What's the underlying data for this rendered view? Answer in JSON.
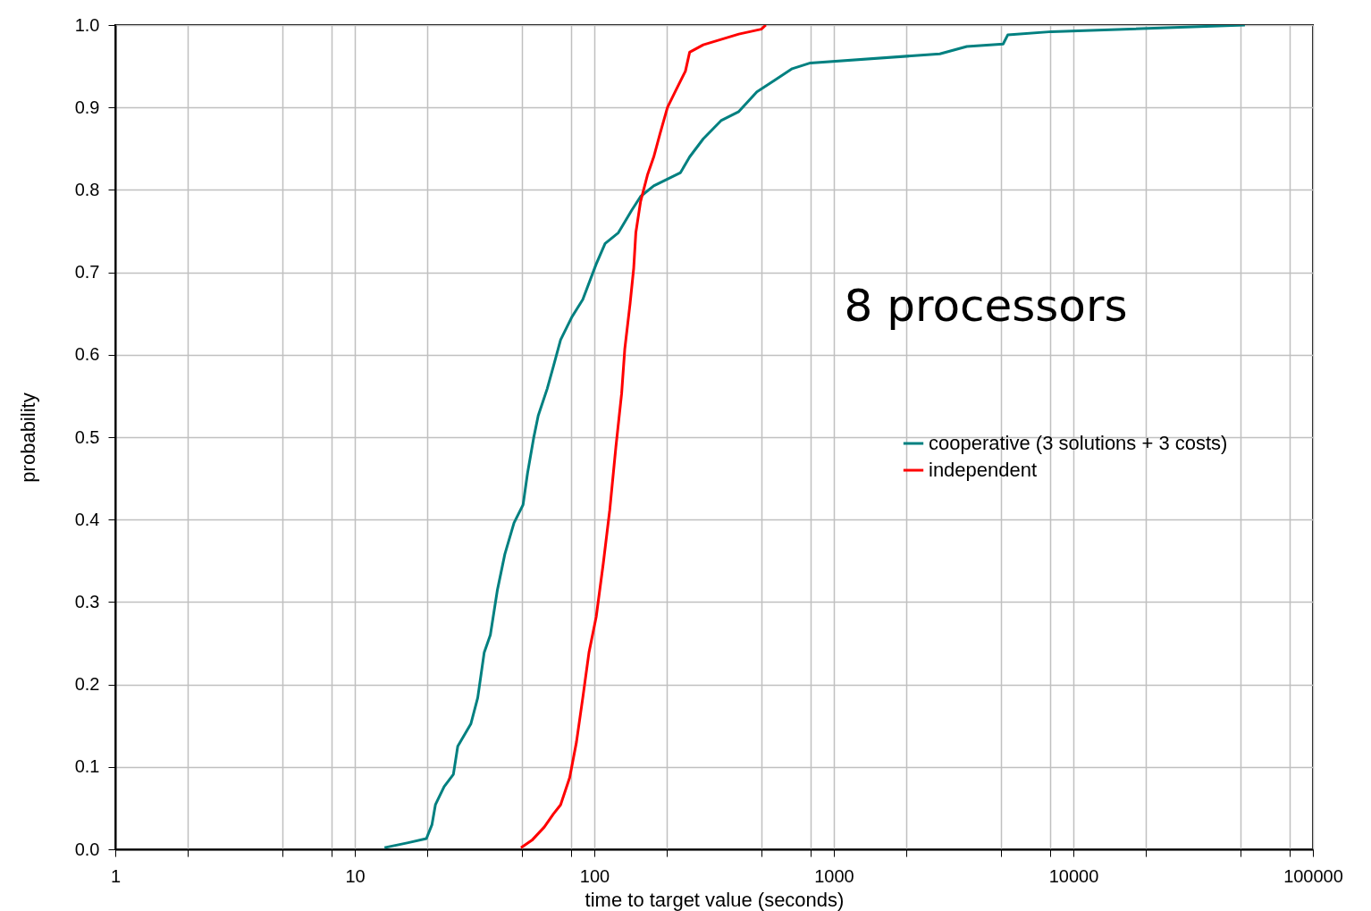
{
  "chart_data": {
    "type": "line",
    "xlabel": "time to target value (seconds)",
    "ylabel": "probability",
    "annotations": [
      "8 processors"
    ],
    "xlim": [
      1,
      100000
    ],
    "ylim": [
      0,
      1
    ],
    "xticks": [
      1,
      {
        "value": 2,
        "label": null
      },
      {
        "value": 5,
        "label": null
      },
      {
        "value": 8,
        "label": null
      },
      10,
      {
        "value": 20,
        "label": null
      },
      {
        "value": 50,
        "label": null
      },
      {
        "value": 80,
        "label": null
      },
      100,
      {
        "value": 200,
        "label": null
      },
      {
        "value": 500,
        "label": null
      },
      {
        "value": 800,
        "label": null
      },
      1000,
      {
        "value": 2000,
        "label": null
      },
      {
        "value": 5000,
        "label": null
      },
      {
        "value": 8000,
        "label": null
      },
      10000,
      {
        "value": 20000,
        "label": null
      },
      {
        "value": 50000,
        "label": null
      },
      {
        "value": 80000,
        "label": null
      },
      100000
    ],
    "yticks": [
      {
        "value": 0,
        "label": "0.0"
      },
      0.1,
      0.2,
      0.3,
      0.4,
      0.5,
      0.6,
      0.7,
      0.8,
      0.9,
      {
        "value": 1,
        "label": "1.0"
      }
    ],
    "log": "x",
    "grid": true,
    "legend": "right",
    "line_style": "solid",
    "series": [
      {
        "name": "cooperative (3 solutions + 3 costs)",
        "color": "#008080",
        "x": [
          13.3,
          16.7,
          19.9,
          21.0,
          21.7,
          23.6,
          25.8,
          26.9,
          30.5,
          32.6,
          34.7,
          36.8,
          39.4,
          42.3,
          46.2,
          50.4,
          52.6,
          55.8,
          58.3,
          63.6,
          67.5,
          72.3,
          80.3,
          89.5,
          101.8,
          110.9,
          126,
          143,
          156,
          177,
          229,
          250,
          285,
          338,
          401,
          477,
          566,
          670,
          798,
          2770,
          3590,
          5090,
          5320,
          8130,
          52000
        ],
        "values": [
          0.002,
          0.008,
          0.013,
          0.03,
          0.054,
          0.076,
          0.091,
          0.125,
          0.152,
          0.184,
          0.239,
          0.26,
          0.315,
          0.358,
          0.396,
          0.418,
          0.456,
          0.499,
          0.526,
          0.559,
          0.586,
          0.618,
          0.645,
          0.667,
          0.71,
          0.735,
          0.748,
          0.775,
          0.792,
          0.805,
          0.821,
          0.84,
          0.862,
          0.884,
          0.895,
          0.919,
          0.933,
          0.947,
          0.954,
          0.965,
          0.974,
          0.977,
          0.988,
          0.992,
          1.0
        ]
      },
      {
        "name": "independent",
        "color": "#ff0000",
        "x": [
          49.4,
          54.9,
          61.8,
          67.5,
          72.3,
          78.9,
          84.2,
          89.5,
          95,
          101.8,
          109,
          116,
          123,
          130,
          134,
          141,
          146,
          149,
          156,
          167,
          177,
          188,
          202,
          220,
          240,
          250,
          285,
          401,
          498,
          520
        ],
        "values": [
          0.002,
          0.011,
          0.027,
          0.043,
          0.054,
          0.087,
          0.13,
          0.184,
          0.239,
          0.282,
          0.347,
          0.412,
          0.488,
          0.553,
          0.607,
          0.662,
          0.705,
          0.748,
          0.786,
          0.819,
          0.84,
          0.868,
          0.9,
          0.922,
          0.944,
          0.967,
          0.976,
          0.989,
          0.995,
          1.0
        ]
      }
    ]
  }
}
